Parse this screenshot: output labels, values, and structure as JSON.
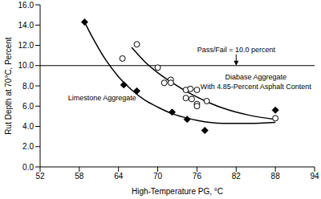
{
  "chart_data": {
    "type": "scatter",
    "x_label": "High-Temperature PG, °C",
    "y_label": "Rut Depth at 70°C, Percent",
    "xlim": [
      52,
      94
    ],
    "xticks": [
      52,
      58,
      64,
      70,
      76,
      82,
      88,
      94
    ],
    "ylim": [
      0,
      16
    ],
    "yticks": [
      {
        "value": 0,
        "label": "0.0"
      },
      {
        "value": 2,
        "label": "2.0"
      },
      {
        "value": 4,
        "label": "4.0"
      },
      {
        "value": 6,
        "label": "6.0"
      },
      {
        "value": 8,
        "label": "8.0"
      },
      {
        "value": 10,
        "label": "10.0"
      },
      {
        "value": 12,
        "label": "12.0"
      },
      {
        "value": 14,
        "label": "14.0"
      },
      {
        "value": 16,
        "label": "16.0"
      }
    ],
    "grid": false,
    "series": [
      {
        "marker": "diamond",
        "color": "#000000",
        "x": [
          58.8,
          64.8,
          66.8,
          72.2,
          74.5,
          77.2,
          88
        ],
        "values": [
          14.3,
          8.1,
          7.5,
          5.4,
          4.7,
          3.6,
          5.6
        ],
        "trend": {
          "x": [
            58.8,
            60,
            62,
            64,
            66,
            68,
            70,
            72,
            74,
            76,
            80,
            84,
            88
          ],
          "values": [
            14.3,
            12.8,
            10.6,
            8.9,
            7.6,
            6.6,
            5.9,
            5.3,
            4.9,
            4.6,
            4.3,
            4.3,
            4.4
          ]
        }
      },
      {
        "marker": "circle_open",
        "color": "#000000",
        "x": [
          64.6,
          66.8,
          70,
          71,
          72,
          72,
          74.3,
          74.3,
          75,
          75.2,
          76,
          76,
          76,
          77.5,
          88
        ],
        "values": [
          10.7,
          12.1,
          9.8,
          8.3,
          8.6,
          8.3,
          7.6,
          6.8,
          7.7,
          6.7,
          7.6,
          6.2,
          6.0,
          6.5,
          4.8
        ],
        "trend": {
          "x": [
            66,
            68,
            70,
            72,
            74,
            76,
            78,
            80,
            84,
            88
          ],
          "values": [
            11.8,
            10.4,
            9.3,
            8.4,
            7.6,
            6.9,
            6.3,
            5.8,
            5.1,
            4.7
          ]
        }
      }
    ],
    "reference_line": {
      "value": 10.0,
      "label": "Pass/Fail = 10.0 percent",
      "label_x": 82,
      "label_y": 11.3,
      "color": "#000000"
    },
    "annotations": [
      {
        "lines": [
          "Diabase Aggregate",
          "With 4.85-Percent Asphalt Content"
        ],
        "x": 85,
        "y": 8.6
      },
      {
        "lines": [
          "Limestone Aggregate"
        ],
        "x": 61.5,
        "y": 6.6
      }
    ]
  }
}
